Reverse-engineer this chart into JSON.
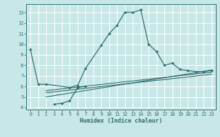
{
  "bg_color": "#c8e8e8",
  "grid_color": "#ffffff",
  "line_color": "#2d6b6b",
  "xlabel": "Humidex (Indice chaleur)",
  "xlim": [
    -0.5,
    23.5
  ],
  "ylim": [
    3.8,
    13.8
  ],
  "yticks": [
    4,
    5,
    6,
    7,
    8,
    9,
    10,
    11,
    12,
    13
  ],
  "xticks": [
    0,
    1,
    2,
    3,
    4,
    5,
    6,
    7,
    8,
    9,
    10,
    11,
    12,
    13,
    14,
    15,
    16,
    17,
    18,
    19,
    20,
    21,
    22,
    23
  ],
  "curve1_x": [
    0,
    1,
    2,
    5,
    6,
    7,
    9,
    10,
    11,
    12,
    13,
    14,
    15,
    16,
    17,
    18,
    19,
    20,
    21,
    22,
    23
  ],
  "curve1_y": [
    9.5,
    6.2,
    6.2,
    5.9,
    6.1,
    7.7,
    9.9,
    11.0,
    11.8,
    13.05,
    13.0,
    13.25,
    10.0,
    9.3,
    8.0,
    8.2,
    7.6,
    7.5,
    7.4,
    7.4,
    7.5
  ],
  "curve2_x": [
    3,
    4,
    5,
    6,
    7
  ],
  "curve2_y": [
    4.3,
    4.4,
    4.65,
    5.9,
    6.0
  ],
  "line1_x": [
    2,
    23
  ],
  "line1_y": [
    5.6,
    7.35
  ],
  "line2_x": [
    2,
    23
  ],
  "line2_y": [
    5.4,
    7.15
  ],
  "line3_x": [
    2,
    23
  ],
  "line3_y": [
    5.0,
    7.55
  ]
}
